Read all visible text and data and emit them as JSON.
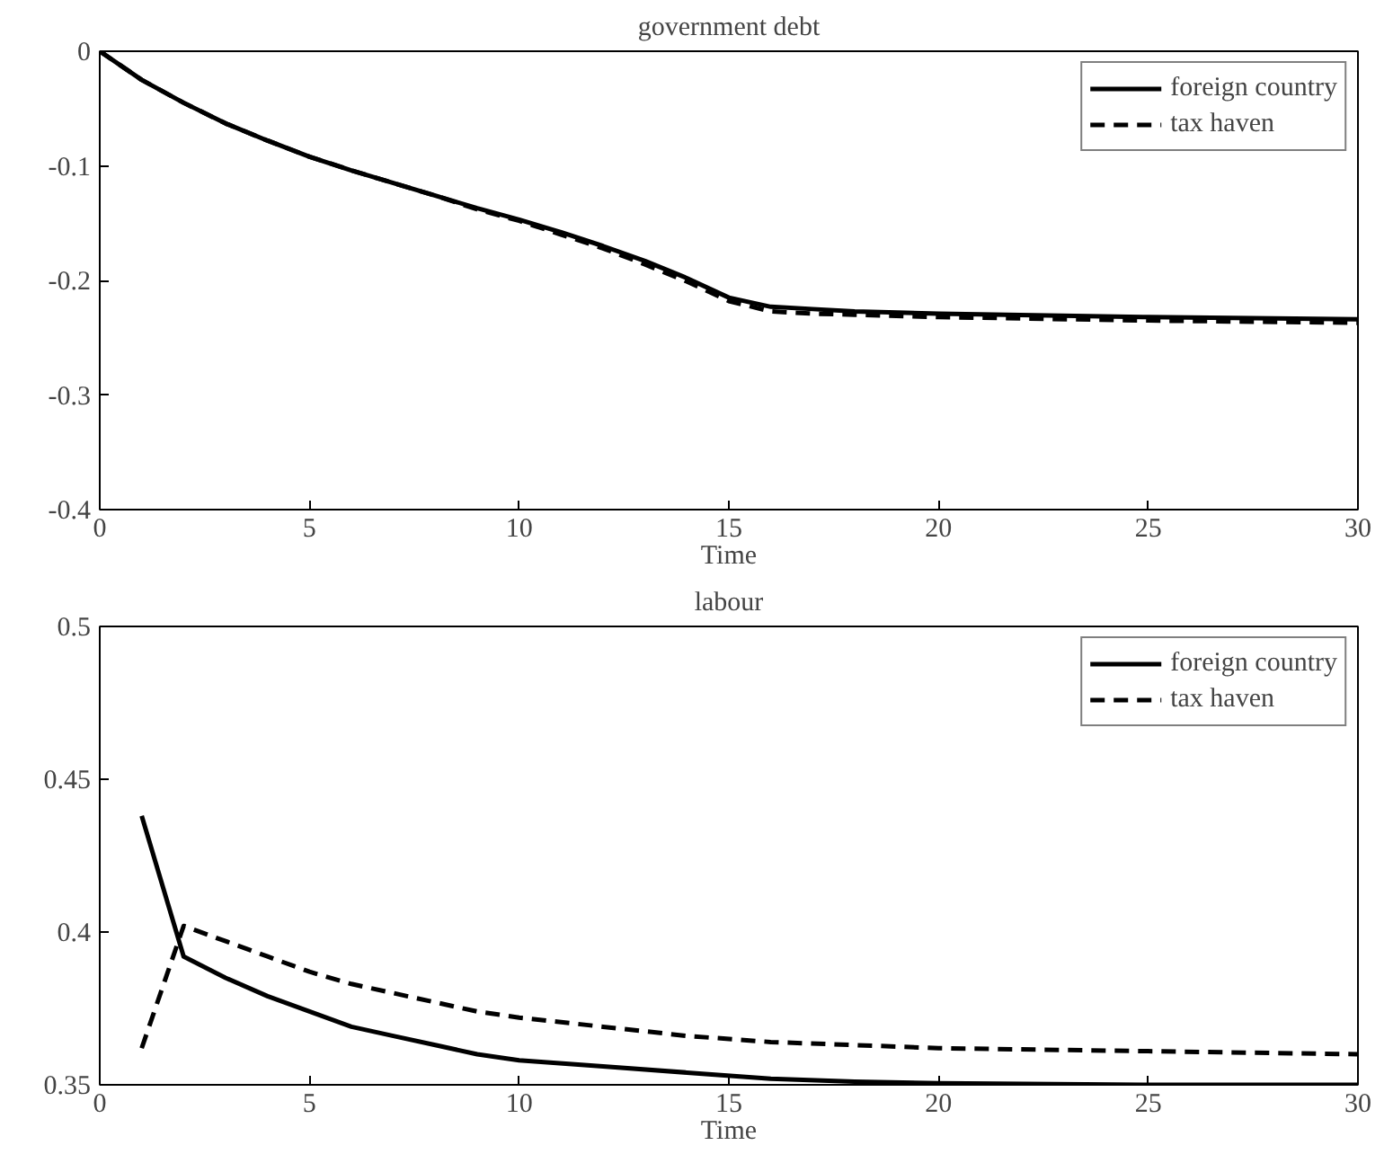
{
  "chart_data": [
    {
      "type": "line",
      "title": "government debt",
      "xlabel": "Time",
      "xlim": [
        0,
        30
      ],
      "ylim": [
        -0.4,
        0
      ],
      "xticks": [
        0,
        5,
        10,
        15,
        20,
        25,
        30
      ],
      "yticks": [
        0,
        -0.1,
        -0.2,
        -0.3,
        -0.4
      ],
      "legend": "top right",
      "grid": false,
      "series": [
        {
          "name": "foreign country",
          "color": "#000000",
          "line_style": "solid",
          "x": [
            0,
            1,
            2,
            3,
            4,
            5,
            6,
            7,
            8,
            9,
            10,
            11,
            12,
            13,
            14,
            15,
            16,
            17,
            18,
            20,
            25,
            30
          ],
          "values": [
            0,
            -0.025,
            -0.045,
            -0.063,
            -0.078,
            -0.092,
            -0.104,
            -0.115,
            -0.126,
            -0.137,
            -0.147,
            -0.158,
            -0.17,
            -0.183,
            -0.198,
            -0.215,
            -0.223,
            -0.225,
            -0.227,
            -0.229,
            -0.232,
            -0.234
          ]
        },
        {
          "name": "tax haven",
          "color": "#000000",
          "line_style": "dashed",
          "x": [
            0,
            1,
            2,
            3,
            4,
            5,
            6,
            7,
            8,
            9,
            10,
            11,
            12,
            13,
            14,
            15,
            16,
            17,
            18,
            20,
            25,
            30
          ],
          "values": [
            0,
            -0.025,
            -0.045,
            -0.063,
            -0.078,
            -0.092,
            -0.104,
            -0.115,
            -0.126,
            -0.138,
            -0.148,
            -0.16,
            -0.172,
            -0.186,
            -0.201,
            -0.218,
            -0.227,
            -0.229,
            -0.23,
            -0.232,
            -0.235,
            -0.237
          ]
        }
      ]
    },
    {
      "type": "line",
      "title": "labour",
      "xlabel": "Time",
      "xlim": [
        0,
        30
      ],
      "ylim": [
        0.35,
        0.5
      ],
      "xticks": [
        0,
        5,
        10,
        15,
        20,
        25,
        30
      ],
      "yticks": [
        0.35,
        0.4,
        0.45,
        0.5
      ],
      "legend": "top right",
      "grid": false,
      "series": [
        {
          "name": "foreign country",
          "color": "#000000",
          "line_style": "solid",
          "x": [
            1,
            2,
            3,
            4,
            5,
            6,
            7,
            8,
            9,
            10,
            12,
            14,
            16,
            18,
            20,
            25,
            30
          ],
          "values": [
            0.438,
            0.392,
            0.385,
            0.379,
            0.374,
            0.369,
            0.366,
            0.363,
            0.36,
            0.358,
            0.356,
            0.354,
            0.352,
            0.351,
            0.3505,
            0.35,
            0.35
          ]
        },
        {
          "name": "tax haven",
          "color": "#000000",
          "line_style": "dashed",
          "x": [
            1,
            2,
            3,
            4,
            5,
            6,
            7,
            8,
            9,
            10,
            12,
            14,
            16,
            18,
            20,
            25,
            30
          ],
          "values": [
            0.362,
            0.402,
            0.397,
            0.392,
            0.387,
            0.383,
            0.38,
            0.377,
            0.374,
            0.372,
            0.369,
            0.366,
            0.364,
            0.363,
            0.362,
            0.361,
            0.36
          ]
        }
      ]
    }
  ]
}
